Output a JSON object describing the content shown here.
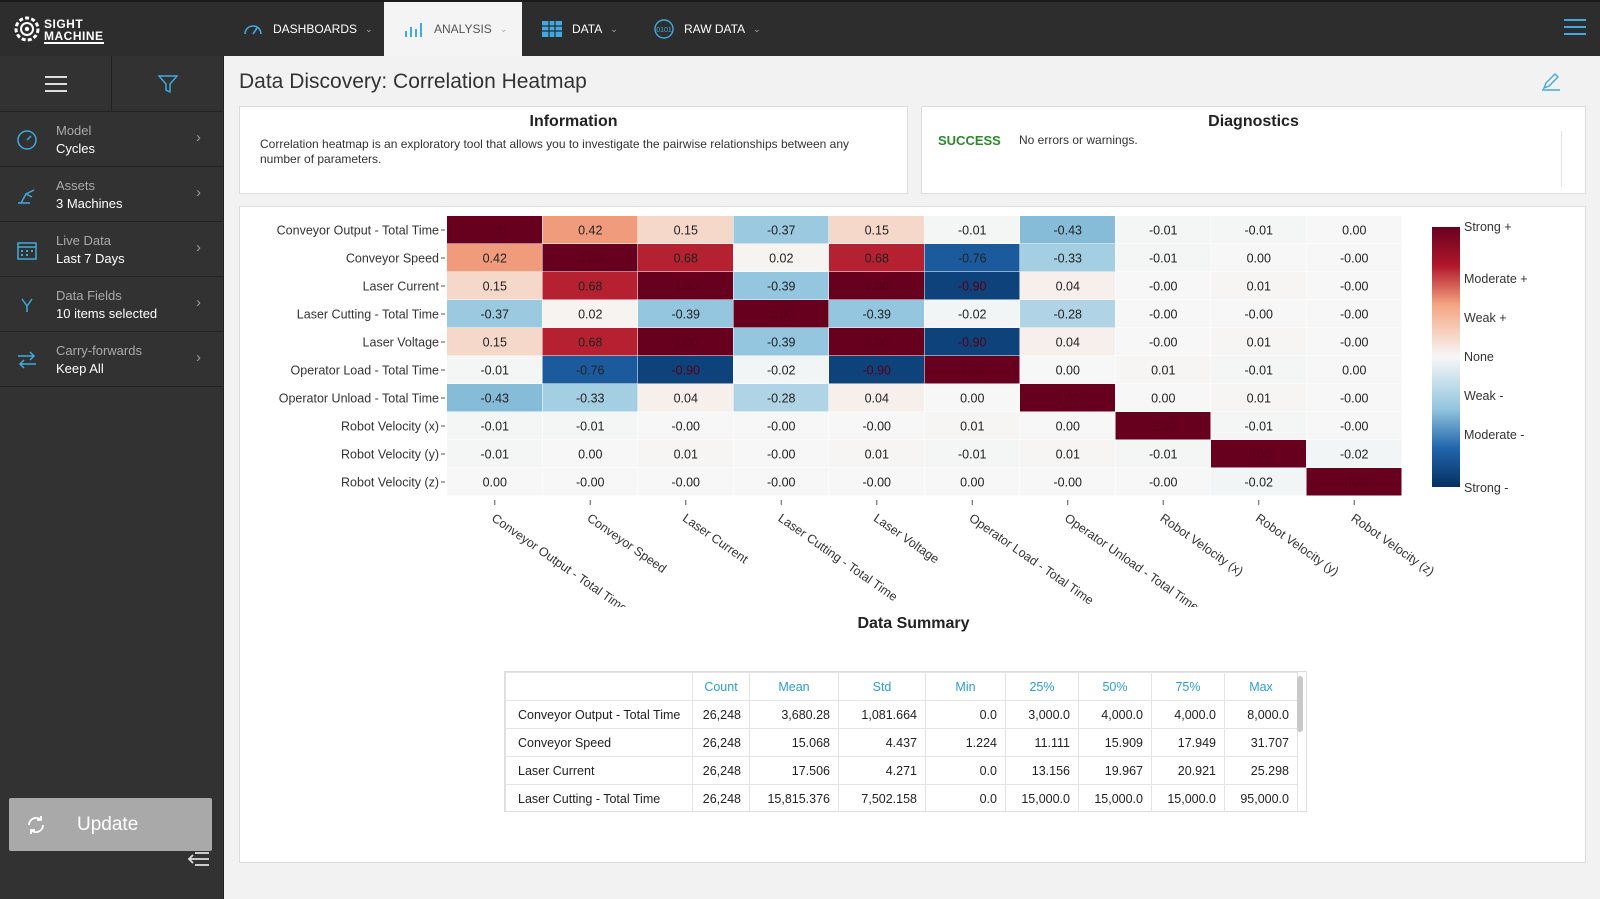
{
  "logo": {
    "line1": "SIGHT",
    "line2": "MACHINE"
  },
  "nav": {
    "dashboards": "DASHBOARDS",
    "analysis": "ANALYSIS",
    "data": "DATA",
    "raw_data": "RAW DATA"
  },
  "sidebar": {
    "items": [
      {
        "label": "Model",
        "value": "Cycles"
      },
      {
        "label": "Assets",
        "value": "3 Machines"
      },
      {
        "label": "Live Data",
        "value": "Last 7 Days"
      },
      {
        "label": "Data Fields",
        "value": "10 items selected"
      },
      {
        "label": "Carry-forwards",
        "value": "Keep All"
      }
    ],
    "update_label": "Update"
  },
  "page_title": "Data Discovery: Correlation Heatmap",
  "info": {
    "title": "Information",
    "text": "Correlation heatmap is an exploratory tool that allows you to investigate the pairwise relationships between any number of parameters."
  },
  "diagnostics": {
    "title": "Diagnostics",
    "status": "SUCCESS",
    "message": "No errors or warnings."
  },
  "colors": {
    "strong_pos": "#67001f",
    "strong_neg": "#053061",
    "none": "#f7f7f7",
    "success": "#2b8a2b",
    "link": "#2a9fd6"
  },
  "chart_data": {
    "type": "heatmap",
    "labels": [
      "Conveyor Output - Total Time",
      "Conveyor Speed",
      "Laser Current",
      "Laser Cutting - Total Time",
      "Laser Voltage",
      "Operator Load - Total Time",
      "Operator Unload - Total Time",
      "Robot Velocity (x)",
      "Robot Velocity (y)",
      "Robot Velocity (z)"
    ],
    "values": [
      [
        1.0,
        0.42,
        0.15,
        -0.37,
        0.15,
        -0.01,
        -0.43,
        -0.01,
        -0.01,
        0.0
      ],
      [
        0.42,
        1.0,
        0.68,
        0.02,
        0.68,
        -0.76,
        -0.33,
        -0.01,
        0.0,
        -0.0
      ],
      [
        0.15,
        0.68,
        1.0,
        -0.39,
        1.0,
        -0.9,
        0.04,
        -0.0,
        0.01,
        -0.0
      ],
      [
        -0.37,
        0.02,
        -0.39,
        1.0,
        -0.39,
        -0.02,
        -0.28,
        -0.0,
        -0.0,
        -0.0
      ],
      [
        0.15,
        0.68,
        1.0,
        -0.39,
        1.0,
        -0.9,
        0.04,
        -0.0,
        0.01,
        -0.0
      ],
      [
        -0.01,
        -0.76,
        -0.9,
        -0.02,
        -0.9,
        1.0,
        0.0,
        0.01,
        -0.01,
        0.0
      ],
      [
        -0.43,
        -0.33,
        0.04,
        -0.28,
        0.04,
        0.0,
        1.0,
        0.0,
        0.01,
        -0.0
      ],
      [
        -0.01,
        -0.01,
        -0.0,
        -0.0,
        -0.0,
        0.01,
        0.0,
        1.0,
        -0.01,
        -0.0
      ],
      [
        -0.01,
        0.0,
        0.01,
        -0.0,
        0.01,
        -0.01,
        0.01,
        -0.01,
        1.0,
        -0.02
      ],
      [
        0.0,
        -0.0,
        -0.0,
        -0.0,
        -0.0,
        0.0,
        -0.0,
        -0.0,
        -0.02,
        1.0
      ]
    ],
    "value_labels": [
      [
        "1.00",
        "0.42",
        "0.15",
        "-0.37",
        "0.15",
        "-0.01",
        "-0.43",
        "-0.01",
        "-0.01",
        "0.00"
      ],
      [
        "0.42",
        "1.00",
        "0.68",
        "0.02",
        "0.68",
        "-0.76",
        "-0.33",
        "-0.01",
        "0.00",
        "-0.00"
      ],
      [
        "0.15",
        "0.68",
        "1.00",
        "-0.39",
        "1.00",
        "-0.90",
        "0.04",
        "-0.00",
        "0.01",
        "-0.00"
      ],
      [
        "-0.37",
        "0.02",
        "-0.39",
        "1.00",
        "-0.39",
        "-0.02",
        "-0.28",
        "-0.00",
        "-0.00",
        "-0.00"
      ],
      [
        "0.15",
        "0.68",
        "1.00",
        "-0.39",
        "1.00",
        "-0.90",
        "0.04",
        "-0.00",
        "0.01",
        "-0.00"
      ],
      [
        "-0.01",
        "-0.76",
        "-0.90",
        "-0.02",
        "-0.90",
        "1.00",
        "0.00",
        "0.01",
        "-0.01",
        "0.00"
      ],
      [
        "-0.43",
        "-0.33",
        "0.04",
        "-0.28",
        "0.04",
        "0.00",
        "1.00",
        "0.00",
        "0.01",
        "-0.00"
      ],
      [
        "-0.01",
        "-0.01",
        "-0.00",
        "-0.00",
        "-0.00",
        "0.01",
        "0.00",
        "1.00",
        "-0.01",
        "-0.00"
      ],
      [
        "-0.01",
        "0.00",
        "0.01",
        "-0.00",
        "0.01",
        "-0.01",
        "0.01",
        "-0.01",
        "1.00",
        "-0.02"
      ],
      [
        "0.00",
        "-0.00",
        "-0.00",
        "-0.00",
        "-0.00",
        "0.00",
        "-0.00",
        "-0.00",
        "-0.02",
        "1.00"
      ]
    ],
    "legend": [
      "Strong +",
      "Moderate +",
      "Weak +",
      "None",
      "Weak -",
      "Moderate -",
      "Strong -"
    ],
    "range": [
      -1,
      1
    ]
  },
  "summary": {
    "title": "Data Summary",
    "headers": [
      "",
      "Count",
      "Mean",
      "Std",
      "Min",
      "25%",
      "50%",
      "75%",
      "Max"
    ],
    "rows": [
      [
        "Conveyor Output - Total Time",
        "26,248",
        "3,680.28",
        "1,081.664",
        "0.0",
        "3,000.0",
        "4,000.0",
        "4,000.0",
        "8,000.0"
      ],
      [
        "Conveyor Speed",
        "26,248",
        "15.068",
        "4.437",
        "1.224",
        "11.111",
        "15.909",
        "17.949",
        "31.707"
      ],
      [
        "Laser Current",
        "26,248",
        "17.506",
        "4.271",
        "0.0",
        "13.156",
        "19.967",
        "20.921",
        "25.298"
      ],
      [
        "Laser Cutting - Total Time",
        "26,248",
        "15,815.376",
        "7,502.158",
        "0.0",
        "15,000.0",
        "15,000.0",
        "15,000.0",
        "95,000.0"
      ]
    ]
  }
}
